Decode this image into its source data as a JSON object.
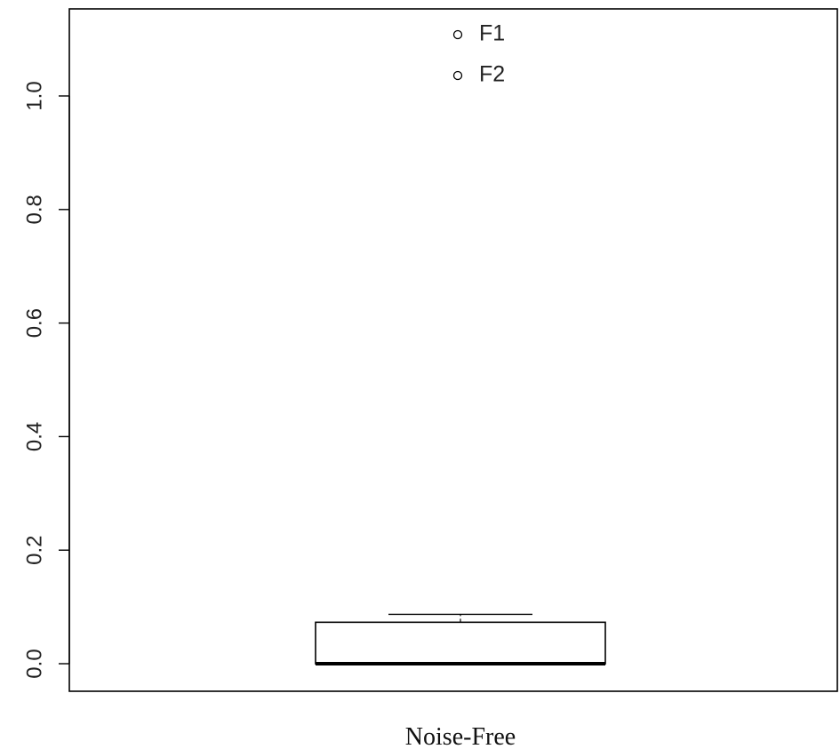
{
  "chart_data": {
    "type": "box",
    "xlabel": "",
    "ylabel": "",
    "categories": [
      "Noise-Free"
    ],
    "ylim": [
      -0.05,
      1.15
    ],
    "y_ticks": [
      0.0,
      0.2,
      0.4,
      0.6,
      0.8,
      1.0
    ],
    "y_tick_labels": [
      "0.0",
      "0.2",
      "0.4",
      "0.6",
      "0.8",
      "1.0"
    ],
    "grid": false,
    "boxes": [
      {
        "category": "Noise-Free",
        "whisker_low": 0.0,
        "q1": 0.0,
        "median": 0.0,
        "q3": 0.073,
        "whisker_high": 0.087,
        "outliers": [
          {
            "label": "F1",
            "value": 1.108
          },
          {
            "label": "F2",
            "value": 1.036
          }
        ]
      }
    ]
  }
}
